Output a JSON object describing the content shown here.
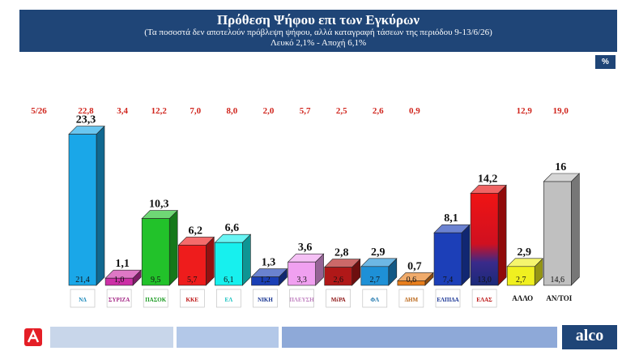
{
  "header": {
    "title": "Πρόθεση Ψήφου επι των Εγκύρων",
    "subtitle": "(Τα ποσοστά δεν αποτελούν πρόβλεψη ψήφου, αλλά καταγραφή τάσεων της περιόδου  9-13/6/26)",
    "note": "Λευκό 2,1% - Αποχή 6,1%"
  },
  "badge": "%",
  "footer": {
    "brand": "alco"
  },
  "chart_data": {
    "type": "bar",
    "title": "Πρόθεση Ψήφου επι των Εγκύρων",
    "prev_period_label": "5/26",
    "ylim": [
      0,
      25
    ],
    "categories": [
      "ΝΔ",
      "ΣΥΡΙΖΑ",
      "ΠΑΣΟΚ",
      "ΚΚΕ",
      "Ελληνική Λύση",
      "Νίκη",
      "Πλεύση Ελευθερίας",
      "ΜέΡΑ25",
      "Φωνή Λογικής",
      "Δημοκράτες",
      "Ελπίδα",
      "ΕΛΑΣ",
      "ΑΛΛΟ",
      "ΑΝ/ΤΟΙ"
    ],
    "bottom_labels": [
      "",
      "",
      "",
      "",
      "",
      "",
      "",
      "",
      "",
      "",
      "",
      "",
      "ΑΛΛΟ",
      "ΑΝ/ΤΟΙ"
    ],
    "series": [
      {
        "values": [
          23.3,
          1.1,
          10.3,
          6.2,
          6.6,
          1.3,
          3.6,
          2.8,
          2.9,
          0.7,
          8.1,
          14.2,
          2.9,
          16
        ]
      },
      {
        "values": [
          21.4,
          1.0,
          9.5,
          5.7,
          6.1,
          1.2,
          3.3,
          2.6,
          2.7,
          0.6,
          7.4,
          13.0,
          2.7,
          14.6
        ]
      },
      {
        "values": [
          22.8,
          3.4,
          12.2,
          7.0,
          8.0,
          2.0,
          5.7,
          2.5,
          2.6,
          0.9,
          null,
          null,
          12.9,
          19.0
        ]
      }
    ],
    "value_labels": [
      "23,3",
      "1,1",
      "10,3",
      "6,2",
      "6,6",
      "1,3",
      "3,6",
      "2,8",
      "2,9",
      "0,7",
      "8,1",
      "14,2",
      "2,9",
      "16"
    ],
    "inner_labels": [
      "21,4",
      "1,0",
      "9,5",
      "5,7",
      "6,1",
      "1,2",
      "3,3",
      "2,6",
      "2,7",
      "0,6",
      "7,4",
      "13,0",
      "2,7",
      "14,6"
    ],
    "prev_labels": [
      "22,8",
      "3,4",
      "12,2",
      "7,0",
      "8,0",
      "2,0",
      "5,7",
      "2,5",
      "2,6",
      "0,9",
      "",
      "",
      "12,9",
      "19,0"
    ],
    "colors": [
      "#1aa7e8",
      "#cc2fa6",
      "#22c22a",
      "#ee1c1c",
      "#17f0ee",
      "#1a3fb5",
      "#f0a0f0",
      "#b01818",
      "#1e90d6",
      "#e87e1c",
      "#1c3fb8",
      "#e81010",
      "#f0f020",
      "#c0c0c0"
    ],
    "logo_texts": [
      "ΝΔ",
      "ΣΥΡΙΖΑ",
      "ΠΑΣΟΚ",
      "ΚΚΕ",
      "ΕΛ",
      "ΝΙΚΗ",
      "ΠΛΕΥΣΗ",
      "ΜέΡΑ",
      "ΦΛ",
      "ΔΗΜ",
      "ΕΛΠΙΔΑ",
      "ΕΛΑΣ",
      "",
      ""
    ]
  }
}
